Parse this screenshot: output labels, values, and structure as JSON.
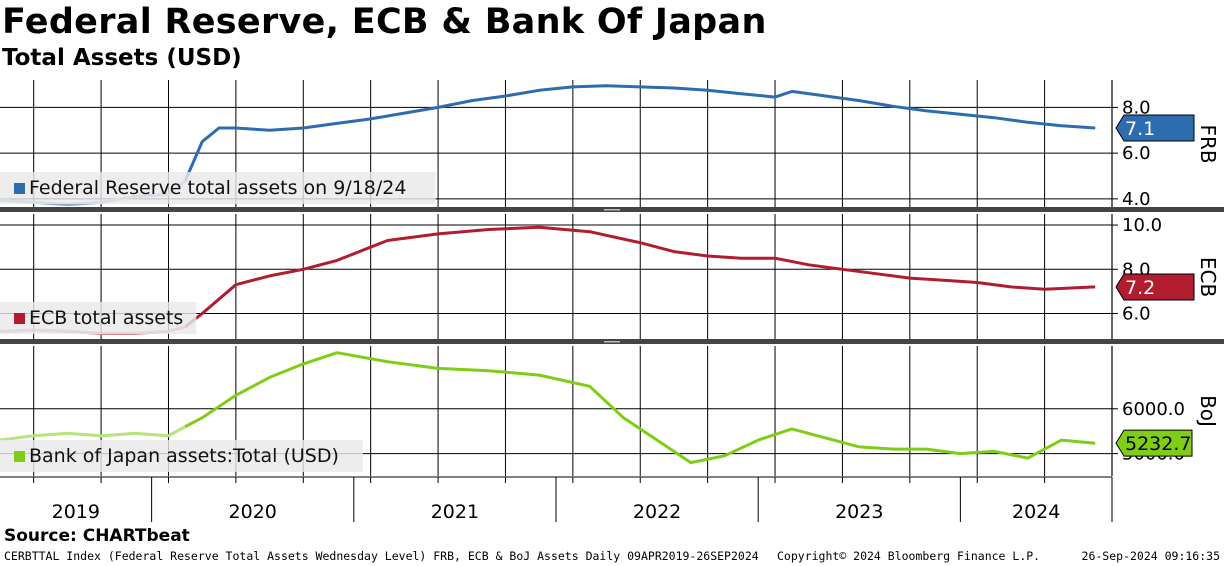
{
  "header": {
    "title": "Federal Reserve, ECB & Bank Of Japan",
    "subtitle": "Total Assets (USD)"
  },
  "source": "Source: CHARTbeat",
  "footer": {
    "left": "CERBTTAL Index (Federal Reserve Total Assets Wednesday Level) FRB, ECB & BoJ Assets  Daily 09APR2019-26SEP2024",
    "middle": "Copyright© 2024 Bloomberg Finance L.P.",
    "right": "26-Sep-2024 09:16:35"
  },
  "chart_data": [
    {
      "type": "line",
      "panel_label": "FRB",
      "legend": "Federal Reserve total assets on 9/18/24",
      "color": "#2e6cb0",
      "last_value_label": "7.1",
      "yticks": [
        "8.0",
        "6.0",
        "4.0"
      ],
      "ylim": [
        3.6,
        9.2
      ],
      "x": [
        "2019-04",
        "2019-06",
        "2019-08",
        "2019-10",
        "2019-12",
        "2020-02",
        "2020-03",
        "2020-04",
        "2020-05",
        "2020-06",
        "2020-08",
        "2020-10",
        "2020-12",
        "2021-02",
        "2021-04",
        "2021-06",
        "2021-08",
        "2021-10",
        "2021-12",
        "2022-02",
        "2022-04",
        "2022-06",
        "2022-08",
        "2022-10",
        "2022-12",
        "2023-02",
        "2023-03",
        "2023-05",
        "2023-07",
        "2023-09",
        "2023-11",
        "2024-01",
        "2024-03",
        "2024-05",
        "2024-07",
        "2024-09"
      ],
      "values": [
        3.95,
        3.85,
        3.75,
        3.85,
        4.1,
        4.2,
        4.8,
        6.5,
        7.1,
        7.1,
        7.0,
        7.1,
        7.3,
        7.5,
        7.75,
        8.0,
        8.3,
        8.5,
        8.75,
        8.9,
        8.95,
        8.9,
        8.85,
        8.75,
        8.6,
        8.45,
        8.7,
        8.5,
        8.3,
        8.05,
        7.85,
        7.7,
        7.55,
        7.35,
        7.2,
        7.1
      ]
    },
    {
      "type": "line",
      "panel_label": "ECB",
      "legend": "ECB total assets",
      "color": "#b11c2f",
      "last_value_label": "7.2",
      "yticks": [
        "10.0",
        "8.0",
        "6.0"
      ],
      "ylim": [
        4.8,
        10.5
      ],
      "x": [
        "2019-04",
        "2019-06",
        "2019-08",
        "2019-10",
        "2019-12",
        "2020-02",
        "2020-03",
        "2020-04",
        "2020-06",
        "2020-08",
        "2020-10",
        "2020-12",
        "2021-03",
        "2021-06",
        "2021-09",
        "2021-12",
        "2022-03",
        "2022-06",
        "2022-08",
        "2022-10",
        "2022-12",
        "2023-02",
        "2023-04",
        "2023-06",
        "2023-08",
        "2023-10",
        "2023-12",
        "2024-02",
        "2024-04",
        "2024-06",
        "2024-09"
      ],
      "values": [
        5.2,
        5.25,
        5.2,
        5.1,
        5.1,
        5.2,
        5.4,
        6.0,
        7.3,
        7.7,
        8.0,
        8.4,
        9.3,
        9.6,
        9.8,
        9.9,
        9.7,
        9.2,
        8.8,
        8.6,
        8.5,
        8.5,
        8.2,
        8.0,
        7.8,
        7.6,
        7.5,
        7.4,
        7.2,
        7.1,
        7.2
      ]
    },
    {
      "type": "line",
      "panel_label": "BoJ",
      "legend": "Bank of Japan assets:Total (USD)",
      "color": "#7fcd16",
      "last_value_label": "5232.7",
      "yticks": [
        "6000.0",
        "5000.0"
      ],
      "ylim": [
        4500,
        7400
      ],
      "x": [
        "2019-04",
        "2019-06",
        "2019-08",
        "2019-10",
        "2019-12",
        "2020-02",
        "2020-03",
        "2020-04",
        "2020-06",
        "2020-08",
        "2020-10",
        "2020-12",
        "2021-03",
        "2021-06",
        "2021-09",
        "2021-12",
        "2022-03",
        "2022-05",
        "2022-07",
        "2022-09",
        "2022-11",
        "2023-01",
        "2023-03",
        "2023-05",
        "2023-07",
        "2023-09",
        "2023-11",
        "2024-01",
        "2024-03",
        "2024-05",
        "2024-07",
        "2024-09"
      ],
      "values": [
        5300,
        5400,
        5450,
        5400,
        5450,
        5400,
        5600,
        5800,
        6300,
        6700,
        7000,
        7250,
        7050,
        6900,
        6850,
        6750,
        6500,
        5800,
        5300,
        4800,
        4950,
        5300,
        5550,
        5350,
        5150,
        5100,
        5100,
        5000,
        5050,
        4900,
        5300,
        5232.7
      ]
    }
  ],
  "x_axis": {
    "years": [
      "2019",
      "2020",
      "2021",
      "2022",
      "2023",
      "2024"
    ],
    "start": "2019-04",
    "end": "2024-10"
  }
}
